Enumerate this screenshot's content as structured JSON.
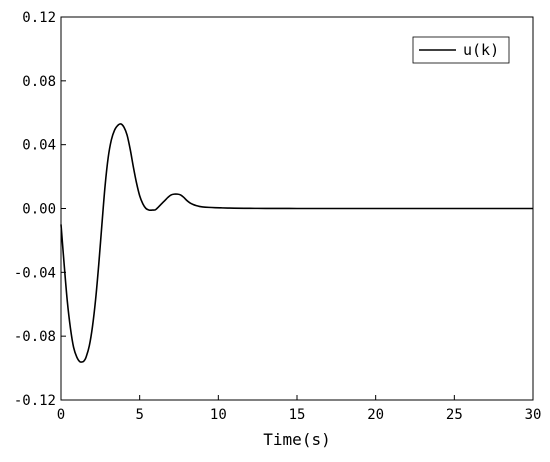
{
  "chart_data": {
    "type": "line",
    "title": "",
    "xlabel": "Time(s)",
    "ylabel": "",
    "xlim": [
      0,
      30
    ],
    "ylim": [
      -0.12,
      0.12
    ],
    "x_ticks": [
      0,
      5,
      10,
      15,
      20,
      25,
      30
    ],
    "x_tick_labels": [
      "0",
      "5",
      "10",
      "15",
      "20",
      "25",
      "30"
    ],
    "y_ticks": [
      -0.12,
      -0.08,
      -0.04,
      0.0,
      0.04,
      0.08,
      0.12
    ],
    "y_tick_labels": [
      "-0.12",
      "-0.08",
      "-0.04",
      "0.00",
      "0.04",
      "0.08",
      "0.12"
    ],
    "grid": false,
    "legend_position": "top-right",
    "series": [
      {
        "name": "u(k)",
        "color": "#000000",
        "x": [
          0,
          0.2,
          0.4,
          0.6,
          0.8,
          1.0,
          1.2,
          1.4,
          1.5,
          1.6,
          1.8,
          2.0,
          2.2,
          2.4,
          2.6,
          2.8,
          3.0,
          3.2,
          3.4,
          3.6,
          3.8,
          4.0,
          4.2,
          4.4,
          4.6,
          4.8,
          5.0,
          5.2,
          5.4,
          5.6,
          5.8,
          6.0,
          6.2,
          6.4,
          6.6,
          6.8,
          7.0,
          7.2,
          7.4,
          7.6,
          7.8,
          8.0,
          8.2,
          8.4,
          8.6,
          8.8,
          9.0,
          9.4,
          9.8,
          10.2,
          10.6,
          11.0,
          12.0,
          13.0,
          14.0,
          15.0,
          16.0,
          18.0,
          20.0,
          22.0,
          24.0,
          26.0,
          28.0,
          30.0
        ],
        "y": [
          -0.01,
          -0.035,
          -0.058,
          -0.075,
          -0.087,
          -0.093,
          -0.096,
          -0.096,
          -0.095,
          -0.093,
          -0.086,
          -0.074,
          -0.057,
          -0.035,
          -0.01,
          0.014,
          0.032,
          0.043,
          0.049,
          0.052,
          0.053,
          0.051,
          0.046,
          0.037,
          0.026,
          0.016,
          0.008,
          0.003,
          0.0,
          -0.001,
          -0.001,
          -0.0008,
          0.001,
          0.003,
          0.005,
          0.007,
          0.0085,
          0.009,
          0.009,
          0.0085,
          0.007,
          0.005,
          0.0035,
          0.0025,
          0.0018,
          0.0013,
          0.001,
          0.0007,
          0.0005,
          0.0004,
          0.0003,
          0.0002,
          0.0001,
          5e-05,
          2e-05,
          0.0,
          0.0,
          0.0,
          0.0,
          0.0,
          0.0,
          0.0,
          0.0,
          0.0
        ]
      }
    ]
  }
}
